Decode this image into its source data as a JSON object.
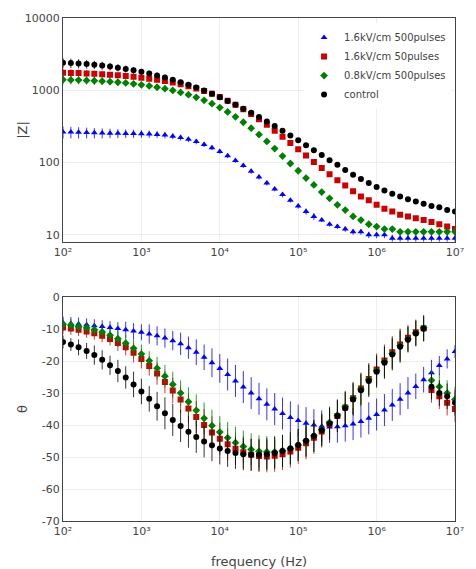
{
  "chart_data": [
    {
      "type": "scatter",
      "log": true,
      "grid": true,
      "legend": "upper right",
      "ylabel": "|Z|",
      "x": [
        100,
        126,
        158,
        200,
        251,
        316,
        398,
        501,
        631,
        794,
        1000,
        1259,
        1585,
        1995,
        2512,
        3162,
        3981,
        5012,
        6310,
        7943,
        10000,
        12589,
        15849,
        19953,
        25119,
        31623,
        39811,
        50119,
        63096,
        79433,
        100000,
        125893,
        158489,
        199526,
        251189,
        316228,
        398107,
        501187,
        630957,
        794328,
        1000000,
        1258925,
        1584893,
        1995262,
        2511886,
        3162278,
        3981072,
        5011872,
        6309573,
        7943282,
        10000000
      ],
      "xlim": [
        100,
        10000000
      ],
      "xticks": [
        {
          "value": 100,
          "label": "10²"
        },
        {
          "value": 1000,
          "label": "10³"
        },
        {
          "value": 10000,
          "label": "10⁴"
        },
        {
          "value": 100000,
          "label": "10⁵"
        },
        {
          "value": 1000000,
          "label": "10⁶"
        },
        {
          "value": 10000000,
          "label": "10⁷"
        }
      ],
      "ylim": [
        8,
        10000
      ],
      "yticks": [
        10,
        100,
        1000,
        10000
      ],
      "series": [
        {
          "name": "1.6kV/cm 500pulses",
          "color": "blue",
          "marker": "triangle-up",
          "values": [
            265,
            264,
            262,
            260,
            258,
            256,
            255,
            254,
            253,
            252,
            250,
            248,
            245,
            240,
            232,
            222,
            210,
            195,
            178,
            160,
            142,
            124,
            107,
            91,
            76,
            63,
            52,
            43,
            36,
            30,
            25,
            21,
            18,
            16,
            14,
            13,
            12,
            11,
            11,
            10,
            10,
            10,
            9,
            9,
            9,
            9,
            9,
            9,
            9,
            9,
            9
          ],
          "errors": [
            50,
            48,
            46,
            44,
            42,
            40,
            38,
            36,
            34,
            32,
            30,
            28,
            26,
            24,
            22,
            20,
            18,
            16,
            14,
            12,
            10,
            9,
            8,
            7,
            6,
            5,
            4,
            3,
            3,
            2,
            2,
            2,
            2,
            1,
            1,
            1,
            1,
            1,
            1,
            1,
            1,
            1,
            1,
            1,
            1,
            1,
            1,
            1,
            1,
            1,
            1
          ]
        },
        {
          "name": "1.6kV/cm 50pulses",
          "color": "#cc0000",
          "marker": "square",
          "values": [
            1750,
            1740,
            1730,
            1710,
            1690,
            1665,
            1638,
            1608,
            1574,
            1536,
            1494,
            1448,
            1397,
            1340,
            1278,
            1210,
            1137,
            1059,
            977,
            892,
            805,
            717,
            630,
            547,
            469,
            397,
            333,
            276,
            228,
            187,
            153,
            125,
            102,
            84,
            69,
            57,
            48,
            40,
            34,
            30,
            26,
            23,
            21,
            19,
            18,
            17,
            16,
            15,
            14,
            13,
            12
          ],
          "errors": [
            220,
            210,
            200,
            188,
            176,
            164,
            152,
            141,
            130,
            119,
            109,
            99,
            90,
            81,
            72,
            64,
            57,
            50,
            43,
            37,
            31,
            26,
            22,
            18,
            15,
            12,
            10,
            8,
            7,
            6,
            5,
            4,
            3,
            3,
            2,
            2,
            2,
            2,
            1,
            1,
            1,
            1,
            1,
            1,
            1,
            1,
            1,
            1,
            1,
            1,
            1
          ]
        },
        {
          "name": "0.8kV/cm 500pulses",
          "color": "#008000",
          "marker": "diamond",
          "values": [
            1400,
            1392,
            1382,
            1370,
            1355,
            1337,
            1316,
            1291,
            1262,
            1229,
            1191,
            1149,
            1102,
            1051,
            995,
            934,
            869,
            800,
            727,
            652,
            576,
            501,
            429,
            361,
            299,
            244,
            196,
            156,
            123,
            97,
            77,
            61,
            49,
            39,
            32,
            26,
            22,
            18,
            16,
            14,
            13,
            12,
            12,
            11,
            11,
            11,
            11,
            11,
            11,
            11,
            11
          ],
          "errors": [
            200,
            190,
            180,
            170,
            160,
            150,
            140,
            130,
            120,
            110,
            100,
            92,
            84,
            76,
            68,
            61,
            54,
            47,
            41,
            35,
            29,
            24,
            20,
            16,
            13,
            10,
            8,
            7,
            5,
            4,
            4,
            3,
            3,
            2,
            2,
            2,
            1,
            1,
            1,
            1,
            1,
            1,
            1,
            1,
            1,
            1,
            1,
            1,
            1,
            1,
            1
          ]
        },
        {
          "name": "control",
          "color": "black",
          "marker": "circle",
          "values": [
            2400,
            2380,
            2350,
            2310,
            2260,
            2200,
            2132,
            2057,
            1977,
            1891,
            1800,
            1705,
            1606,
            1505,
            1401,
            1296,
            1192,
            1089,
            989,
            892,
            800,
            713,
            632,
            557,
            488,
            426,
            370,
            320,
            276,
            237,
            203,
            174,
            148,
            127,
            108,
            93,
            79,
            68,
            59,
            52,
            46,
            41,
            37,
            34,
            31,
            29,
            27,
            25,
            24,
            22,
            21
          ],
          "errors": [
            380,
            360,
            340,
            318,
            296,
            275,
            255,
            235,
            216,
            197,
            179,
            162,
            146,
            130,
            116,
            102,
            90,
            79,
            68,
            59,
            50,
            43,
            36,
            30,
            25,
            21,
            17,
            14,
            12,
            10,
            8,
            7,
            6,
            5,
            4,
            4,
            3,
            3,
            3,
            2,
            2,
            2,
            2,
            2,
            2,
            2,
            2,
            2,
            1,
            1,
            1
          ]
        }
      ]
    },
    {
      "type": "scatter",
      "log": "x",
      "grid": true,
      "ylabel": "θ",
      "xlabel": "frequency (Hz)",
      "x": [
        100,
        126,
        158,
        200,
        251,
        316,
        398,
        501,
        631,
        794,
        1000,
        1259,
        1585,
        1995,
        2512,
        3162,
        3981,
        5012,
        6310,
        7943,
        10000,
        12589,
        15849,
        19953,
        25119,
        31623,
        39811,
        50119,
        63096,
        79433,
        100000,
        125893,
        158489,
        199526,
        251189,
        316228,
        398107,
        501187,
        630957,
        794328,
        1000000,
        1258925,
        1584893,
        1995262,
        2511886,
        3162278,
        3981072,
        5011872,
        6309573,
        7943282,
        10000000
      ],
      "xlim": [
        100,
        10000000
      ],
      "xticks": [
        {
          "value": 100,
          "label": "10²"
        },
        {
          "value": 1000,
          "label": "10³"
        },
        {
          "value": 10000,
          "label": "10⁴"
        },
        {
          "value": 100000,
          "label": "10⁵"
        },
        {
          "value": 1000000,
          "label": "10⁶"
        },
        {
          "value": 10000000,
          "label": "10⁷"
        }
      ],
      "ylim": [
        -70,
        0
      ],
      "yticks": [
        0,
        -10,
        -20,
        -30,
        -40,
        -50,
        -60,
        -70
      ],
      "series": [
        {
          "color": "blue",
          "marker": "triangle-up",
          "values": [
            -8,
            -8.2,
            -8.4,
            -8.6,
            -8.9,
            -9.2,
            -9.5,
            -9.8,
            -10.2,
            -10.6,
            -11.0,
            -11.5,
            -12.1,
            -12.8,
            -13.6,
            -14.6,
            -15.8,
            -17.2,
            -18.8,
            -20.5,
            -22.3,
            -24.2,
            -26.2,
            -28.1,
            -30.0,
            -31.8,
            -33.5,
            -35.0,
            -36.4,
            -37.6,
            -38.6,
            -39.4,
            -40.0,
            -40.4,
            -40.6,
            -40.5,
            -40.2,
            -39.7,
            -38.9,
            -37.9,
            -36.7,
            -35.3,
            -33.7,
            -31.9,
            -30.0,
            -27.9,
            -25.8,
            -23.6,
            -21.4,
            -19.3,
            -17
          ],
          "errors": [
            2,
            2,
            2,
            2,
            2,
            2,
            2,
            2,
            2.5,
            2.5,
            2.5,
            3,
            3,
            3,
            3,
            3.5,
            3.5,
            4,
            4,
            4.5,
            4.5,
            5,
            5,
            5,
            5,
            5,
            5,
            5,
            5,
            5,
            5,
            5,
            5,
            5,
            5,
            5,
            5,
            5,
            5,
            5,
            5,
            5,
            5,
            5,
            5,
            4,
            4,
            4,
            3,
            3,
            2
          ]
        },
        {
          "color": "#cc0000",
          "marker": "square",
          "values": [
            -9.5,
            -9.8,
            -10.2,
            -10.7,
            -11.3,
            -12.1,
            -13.1,
            -14.3,
            -15.7,
            -17.4,
            -19.3,
            -21.5,
            -23.9,
            -26.5,
            -29.2,
            -32.0,
            -34.8,
            -37.5,
            -40.0,
            -42.3,
            -44.3,
            -46.0,
            -47.4,
            -48.5,
            -49.3,
            -49.7,
            -49.8,
            -49.6,
            -49.1,
            -48.3,
            -47.1,
            -45.7,
            -44.0,
            -42.0,
            -39.7,
            -37.2,
            -34.5,
            -31.6,
            -28.6,
            -25.6,
            -22.6,
            -19.8,
            -17.2,
            -14.8,
            -12.7,
            -11.0,
            -9.7,
            -29,
            -31,
            -33,
            -35
          ],
          "errors": [
            2,
            2,
            2,
            2,
            2,
            2,
            2,
            2.5,
            2.5,
            3,
            3,
            3,
            3.5,
            3.5,
            4,
            4,
            4.5,
            5,
            5,
            5,
            5,
            5,
            5,
            5,
            5,
            5,
            5,
            5,
            5,
            5,
            5,
            5,
            5,
            5,
            5,
            5,
            5,
            5,
            5,
            5,
            5,
            5,
            5,
            5,
            4,
            4,
            4,
            4,
            4,
            4,
            4
          ]
        },
        {
          "color": "#008000",
          "marker": "diamond",
          "values": [
            -8.5,
            -8.8,
            -9.2,
            -9.6,
            -10.2,
            -10.9,
            -11.9,
            -13.0,
            -14.4,
            -16.0,
            -17.8,
            -19.9,
            -22.2,
            -24.7,
            -27.3,
            -30.0,
            -32.7,
            -35.4,
            -37.9,
            -40.2,
            -42.2,
            -44.0,
            -45.5,
            -46.7,
            -47.6,
            -48.2,
            -48.4,
            -48.4,
            -48.0,
            -47.3,
            -46.2,
            -44.9,
            -43.3,
            -41.4,
            -39.2,
            -36.9,
            -34.3,
            -31.6,
            -28.7,
            -25.8,
            -23.0,
            -20.2,
            -17.6,
            -15.2,
            -13.1,
            -11.2,
            -9.6,
            -26,
            -28,
            -30,
            -32
          ],
          "errors": [
            2,
            2,
            2,
            2,
            2,
            2,
            2,
            2.5,
            2.5,
            3,
            3,
            3,
            3.5,
            3.5,
            4,
            4,
            4.5,
            5,
            5,
            5,
            5,
            5,
            5,
            5,
            5,
            5,
            5,
            5,
            5,
            5,
            5,
            5,
            5,
            5,
            5,
            5,
            5,
            5,
            5,
            5,
            5,
            5,
            5,
            5,
            4,
            4,
            4,
            4,
            4,
            4,
            4
          ]
        },
        {
          "color": "black",
          "marker": "circle",
          "values": [
            -14,
            -14.8,
            -15.7,
            -16.8,
            -18.1,
            -19.6,
            -21.3,
            -23.1,
            -25.1,
            -27.3,
            -29.5,
            -31.8,
            -34.1,
            -36.3,
            -38.4,
            -40.3,
            -42.1,
            -43.7,
            -45.1,
            -46.3,
            -47.3,
            -48.1,
            -48.7,
            -49.1,
            -49.3,
            -49.3,
            -49.1,
            -48.7,
            -48.1,
            -47.3,
            -46.2,
            -44.9,
            -43.4,
            -41.6,
            -39.5,
            -37.2,
            -34.7,
            -32.0,
            -29.1,
            -26.2,
            -23.3,
            -20.5,
            -17.9,
            -15.5,
            -13.3,
            -11.4,
            -9.9,
            -28,
            -30,
            -31,
            -33
          ],
          "errors": [
            2,
            2,
            2.5,
            2.5,
            3,
            3,
            3,
            3.5,
            3.5,
            4,
            4,
            4,
            4.5,
            5,
            5,
            5,
            5,
            5,
            5,
            5,
            5,
            5,
            5,
            5,
            5,
            5,
            5,
            5,
            5,
            5,
            5,
            5,
            5,
            5,
            5,
            5,
            5,
            5,
            5,
            5,
            5,
            5,
            5,
            5,
            4,
            4,
            4,
            4,
            4,
            4,
            4
          ]
        }
      ]
    }
  ]
}
